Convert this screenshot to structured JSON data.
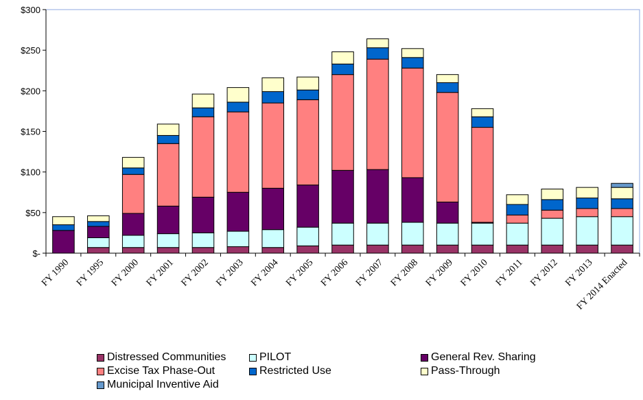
{
  "chart_data": {
    "type": "bar",
    "stacked": true,
    "categories": [
      "FY 1990",
      "FY 1995",
      "FY 2000",
      "FY 2001",
      "FY 2002",
      "FY 2003",
      "FY 2004",
      "FY 2005",
      "FY 2006",
      "FY 2007",
      "FY 2008",
      "FY 2009",
      "FY 2010",
      "FY 2011",
      "FY 2012",
      "FY 2013",
      "FY 2014 Enacted"
    ],
    "ylim": [
      0,
      300
    ],
    "yticks": [
      0,
      50,
      100,
      150,
      200,
      250,
      300
    ],
    "ytick_labels": [
      "$-",
      "$50",
      "$100",
      "$150",
      "$200",
      "$250",
      "$300"
    ],
    "grid": false,
    "legend_position": "bottom",
    "series": [
      {
        "name": "Distressed Communities",
        "color": "#993366",
        "values": [
          0,
          7,
          7,
          7,
          7,
          8,
          7,
          9,
          10,
          10,
          10,
          10,
          10,
          10,
          10,
          10,
          10
        ]
      },
      {
        "name": "PILOT",
        "color": "#ccffff",
        "values": [
          0,
          12,
          15,
          17,
          18,
          19,
          22,
          23,
          27,
          27,
          28,
          27,
          27,
          27,
          33,
          35,
          35
        ]
      },
      {
        "name": "General Rev. Sharing",
        "color": "#660066",
        "values": [
          28,
          14,
          27,
          34,
          44,
          48,
          51,
          52,
          65,
          66,
          55,
          26,
          1,
          0,
          0,
          0,
          0
        ]
      },
      {
        "name": "Excise Tax Phase-Out",
        "color": "#ff8080",
        "values": [
          0,
          0,
          48,
          77,
          99,
          99,
          105,
          105,
          118,
          136,
          135,
          135,
          117,
          10,
          10,
          10,
          10
        ]
      },
      {
        "name": "Restricted Use",
        "color": "#0066cc",
        "values": [
          7,
          6,
          8,
          10,
          11,
          12,
          14,
          12,
          13,
          14,
          13,
          12,
          13,
          13,
          13,
          13,
          12
        ]
      },
      {
        "name": "Pass-Through",
        "color": "#ffffcc",
        "values": [
          10,
          7,
          13,
          14,
          17,
          18,
          17,
          16,
          15,
          11,
          11,
          10,
          10,
          12,
          13,
          13,
          14
        ]
      },
      {
        "name": "Municipal Inventive Aid",
        "color": "#6699cc",
        "values": [
          0,
          0,
          0,
          0,
          0,
          0,
          0,
          0,
          0,
          0,
          0,
          0,
          0,
          0,
          0,
          0,
          5
        ]
      }
    ]
  }
}
